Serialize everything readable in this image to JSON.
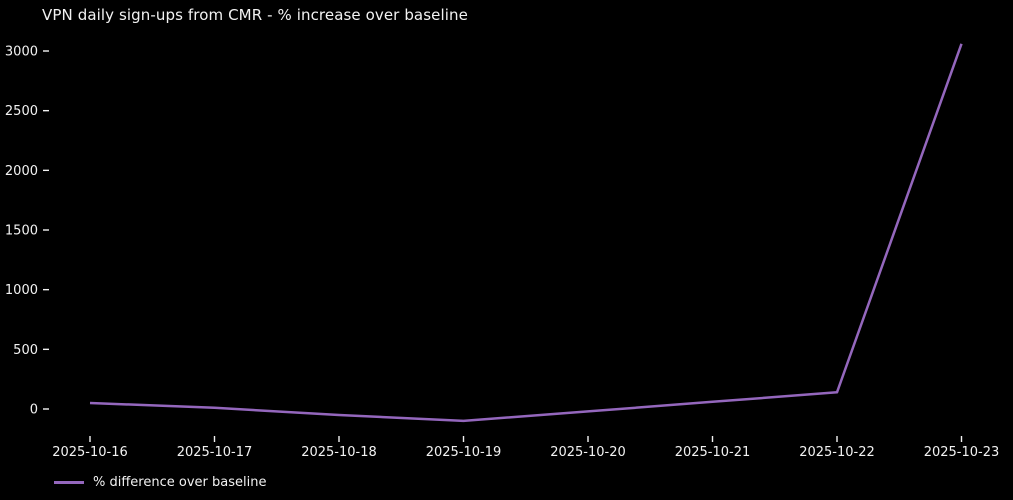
{
  "figure": {
    "background_color": "#000000",
    "text_color": "#f2f2f2"
  },
  "legend": {
    "label": "% difference over baseline",
    "swatch_color": "#9467bd"
  },
  "chart_data": {
    "type": "line",
    "title": "VPN daily sign-ups from CMR - % increase over baseline",
    "categories": [
      "2025-10-16",
      "2025-10-17",
      "2025-10-18",
      "2025-10-19",
      "2025-10-20",
      "2025-10-21",
      "2025-10-22",
      "2025-10-23"
    ],
    "series": [
      {
        "name": "% difference over baseline",
        "color": "#9467bd",
        "values": [
          50,
          10,
          -50,
          -100,
          -20,
          60,
          140,
          3060
        ]
      }
    ],
    "xlabel": "",
    "ylabel": "",
    "yticks": [
      0,
      500,
      1000,
      1500,
      2000,
      2500,
      3000
    ],
    "ylim": [
      -150,
      3150
    ],
    "grid": false,
    "legend_position": "lower-left-outside",
    "background": "#000000",
    "tick_color": "#f2f2f2"
  }
}
